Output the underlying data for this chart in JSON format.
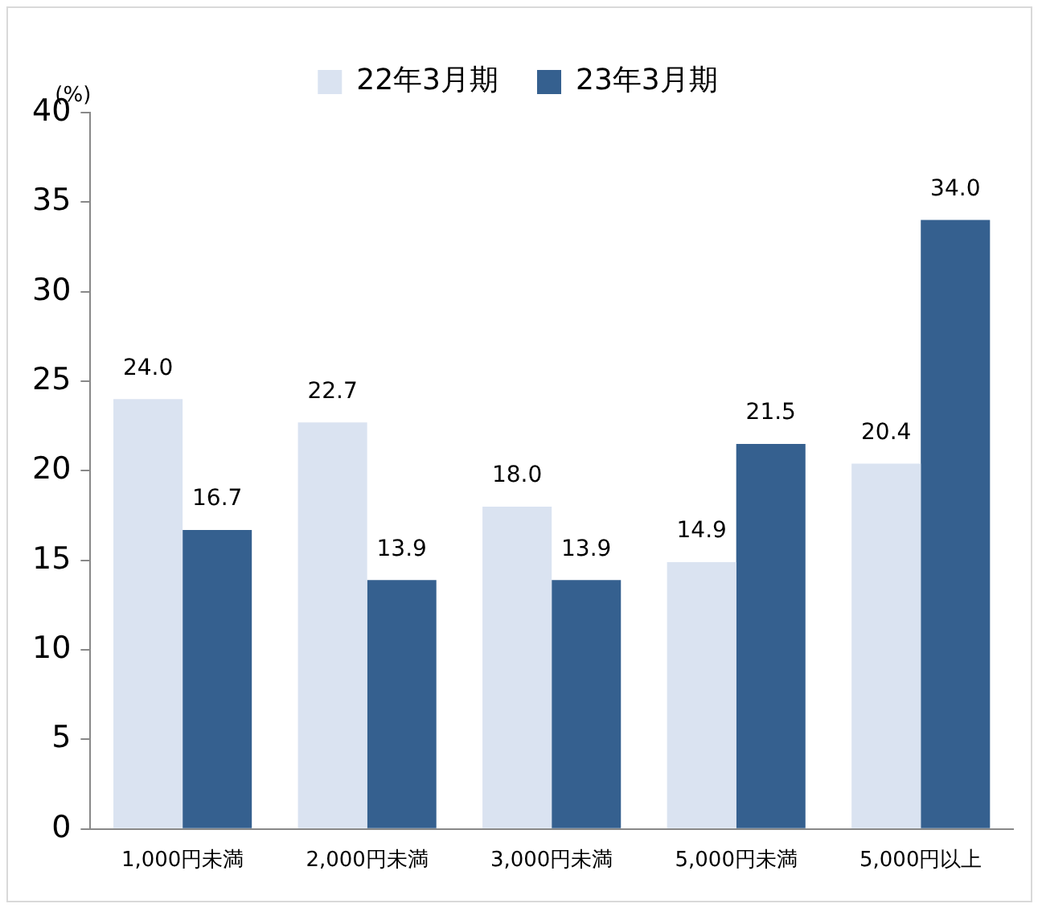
{
  "chart_data": {
    "type": "bar",
    "ylabel": "(%)",
    "categories": [
      "1,000円未満",
      "2,000円未満",
      "3,000円未満",
      "5,000円未満",
      "5,000円以上"
    ],
    "series": [
      {
        "name": "22年3月期",
        "color": "#dae3f1",
        "values": [
          24.0,
          22.7,
          18.0,
          14.9,
          20.4
        ],
        "value_labels": [
          "24.0",
          "22.7",
          "18.0",
          "14.9",
          "20.4"
        ]
      },
      {
        "name": "23年3月期",
        "color": "#35608f",
        "values": [
          16.7,
          13.9,
          13.9,
          21.5,
          34.0
        ],
        "value_labels": [
          "16.7",
          "13.9",
          "13.9",
          "21.5",
          "34.0"
        ]
      }
    ],
    "ylim": [
      0,
      40
    ],
    "yticks": [
      0,
      5,
      10,
      15,
      20,
      25,
      30,
      35,
      40
    ],
    "grid": false,
    "legend": "top"
  }
}
